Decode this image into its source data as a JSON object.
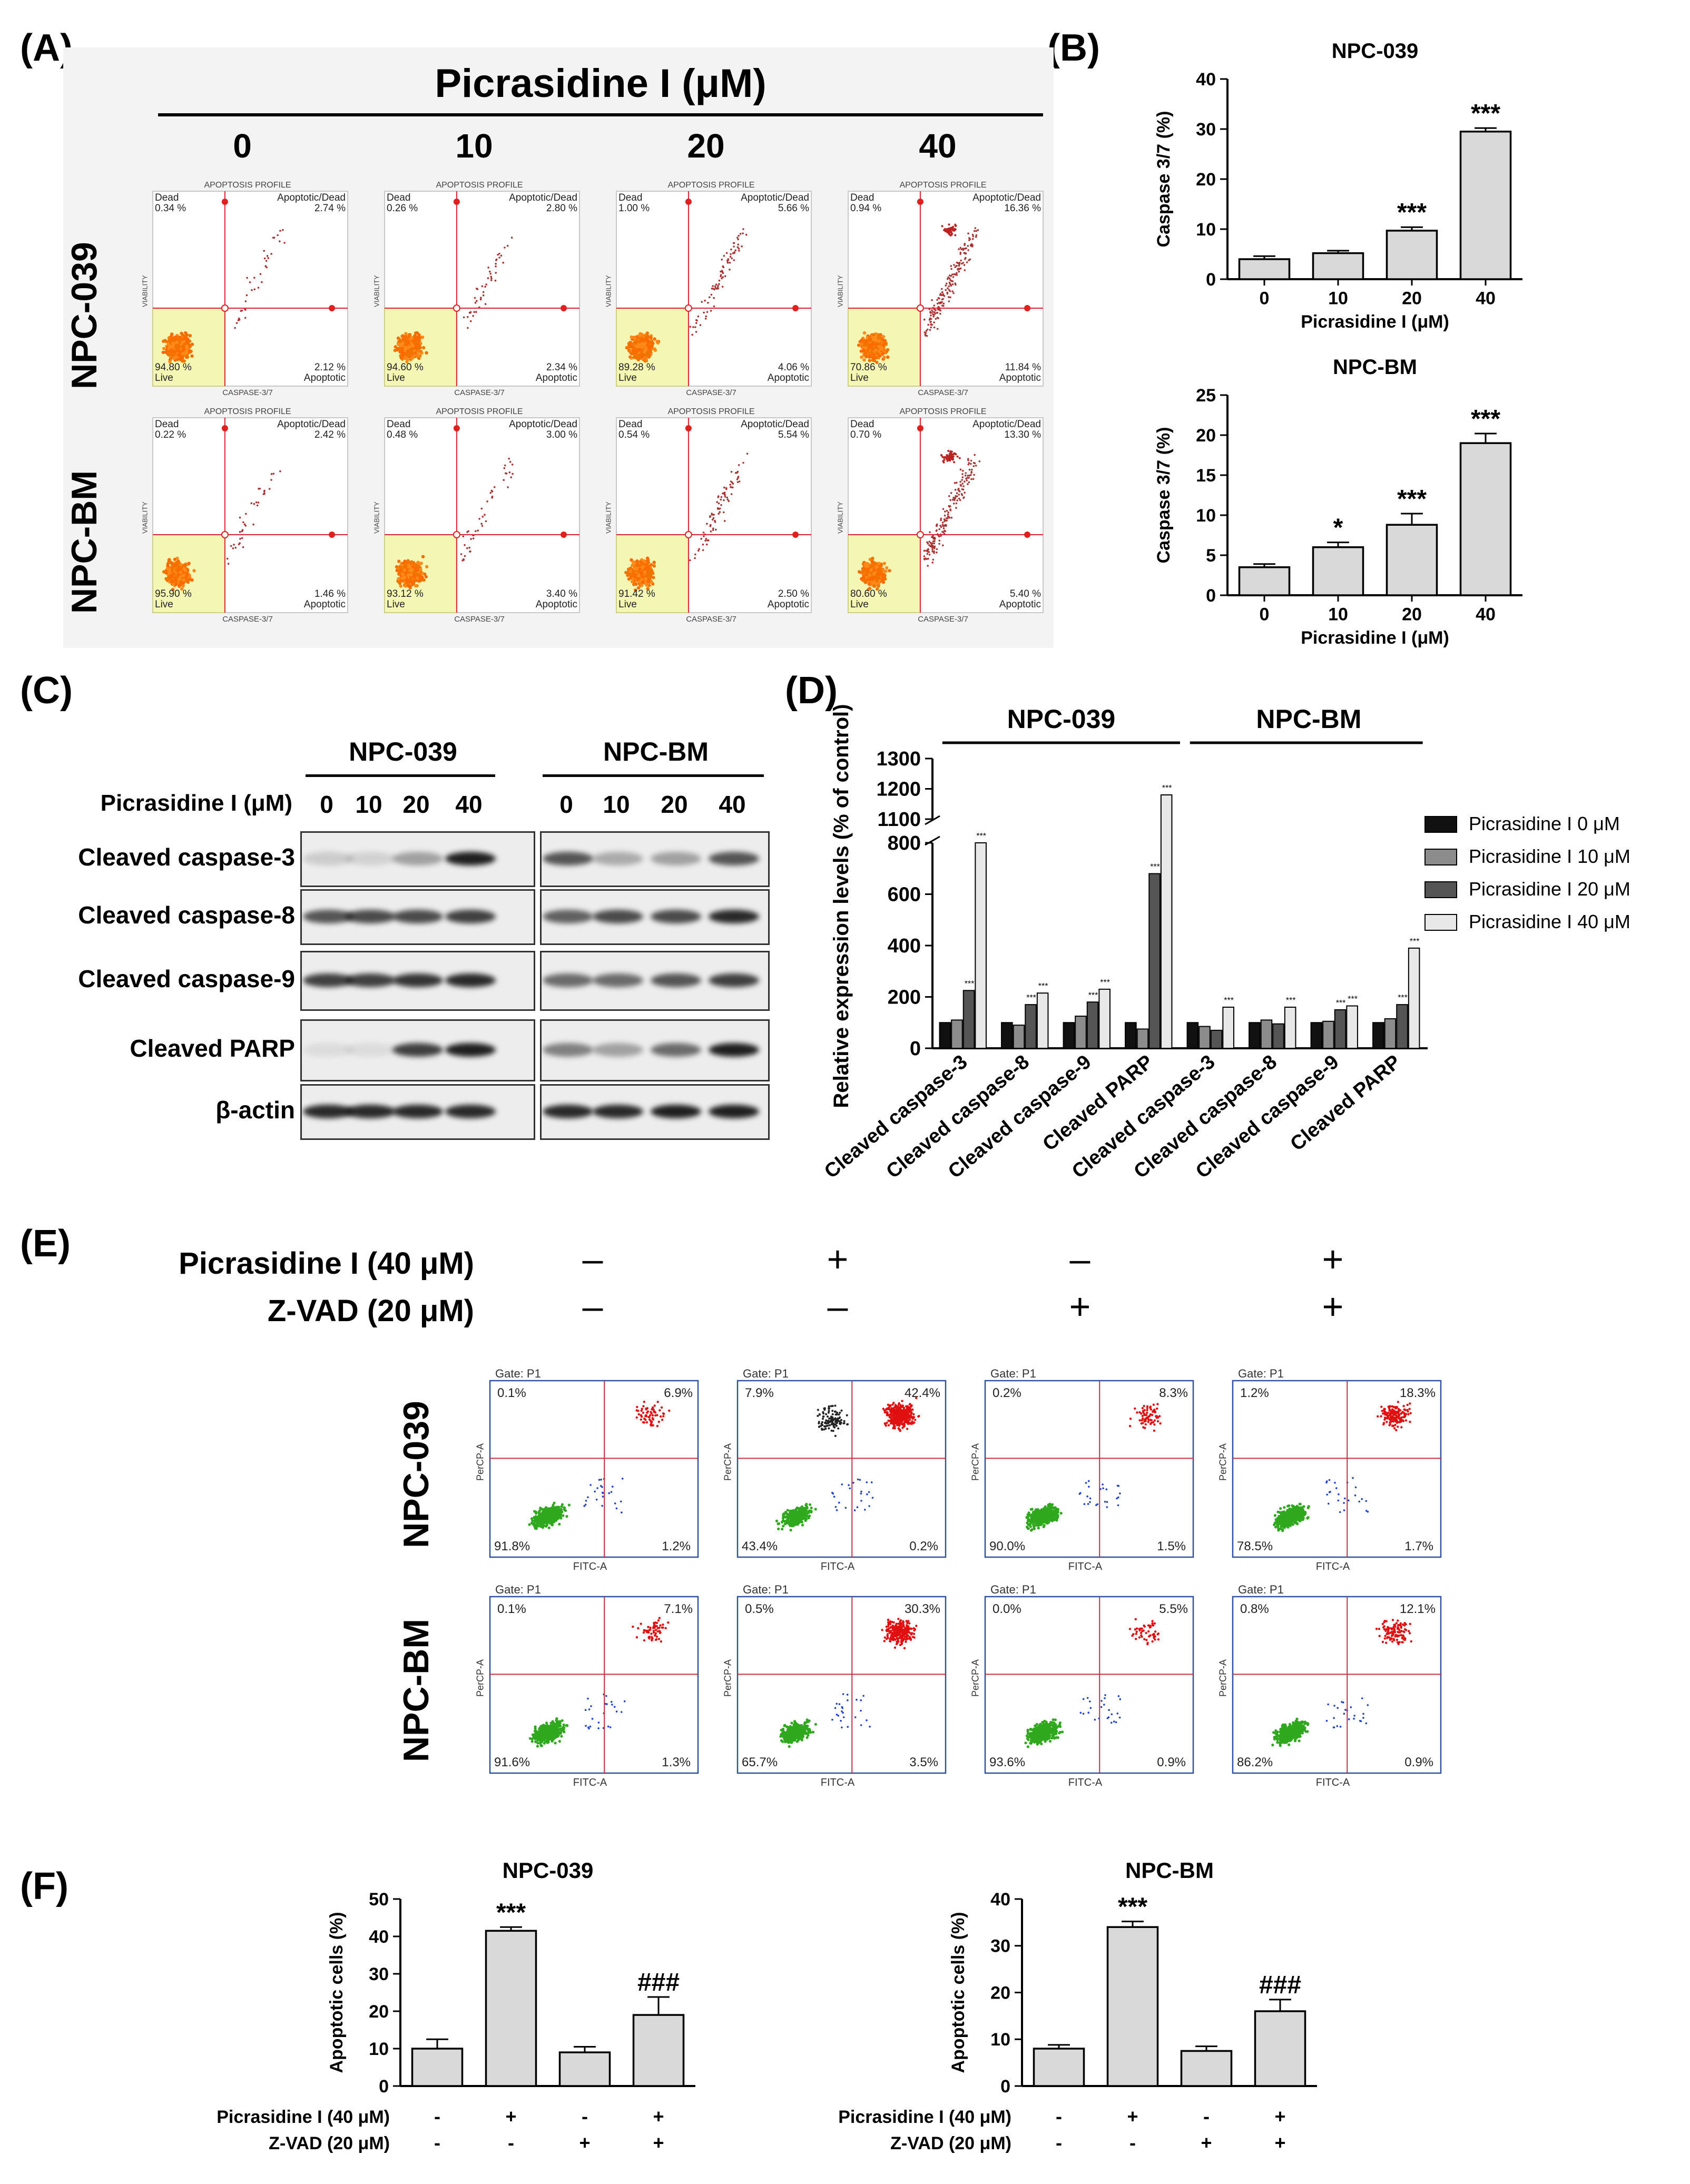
{
  "panels": {
    "A": "(A)",
    "B": "(B)",
    "C": "(C)",
    "D": "(D)",
    "E": "(E)",
    "F": "(F)"
  },
  "panelA": {
    "title": "Picrasidine I (μM)",
    "doses": [
      "0",
      "10",
      "20",
      "40"
    ],
    "rows": [
      "NPC-039",
      "NPC-BM"
    ],
    "plot_title": "APOPTOSIS PROFILE",
    "y_axis": "VIABILITY",
    "x_axis": "CASPASE-3/7",
    "corner_labels": {
      "dead": "Dead",
      "apodead": "Apoptotic/Dead",
      "live": "Live",
      "apo": "Apoptotic"
    },
    "cells": [
      [
        {
          "dead": "0.34 %",
          "apodead": "2.74 %",
          "live": "94.80 %",
          "apo": "2.12 %"
        },
        {
          "dead": "0.26 %",
          "apodead": "2.80 %",
          "live": "94.60 %",
          "apo": "2.34 %"
        },
        {
          "dead": "1.00 %",
          "apodead": "5.66 %",
          "live": "89.28 %",
          "apo": "4.06 %"
        },
        {
          "dead": "0.94 %",
          "apodead": "16.36 %",
          "live": "70.86 %",
          "apo": "11.84 %"
        }
      ],
      [
        {
          "dead": "0.22 %",
          "apodead": "2.42 %",
          "live": "95.90 %",
          "apo": "1.46 %"
        },
        {
          "dead": "0.48 %",
          "apodead": "3.00 %",
          "live": "93.12 %",
          "apo": "3.40 %"
        },
        {
          "dead": "0.54 %",
          "apodead": "5.54 %",
          "live": "91.42 %",
          "apo": "2.50 %"
        },
        {
          "dead": "0.70 %",
          "apodead": "13.30 %",
          "live": "80.60 %",
          "apo": "5.40 %"
        }
      ]
    ]
  },
  "panelC": {
    "groups": [
      "NPC-039",
      "NPC-BM"
    ],
    "dose_label": "Picrasidine  I (μM)",
    "doses": [
      "0",
      "10",
      "20",
      "40"
    ],
    "proteins": [
      "Cleaved caspase-3",
      "Cleaved caspase-8",
      "Cleaved caspase-9",
      "Cleaved PARP",
      "β-actin"
    ]
  },
  "panelE": {
    "treat1": "Picrasidine I (40 μM)",
    "treat2": "Z-VAD (20 μM)",
    "signs1": [
      "–",
      "+",
      "–",
      "+"
    ],
    "signs2": [
      "–",
      "–",
      "+",
      "+"
    ],
    "rows": [
      "NPC-039",
      "NPC-BM"
    ],
    "gate": "Gate: P1",
    "y_axis": "PerCP-A",
    "x_axis": "FITC-A",
    "cells": [
      [
        {
          "ul": "0.1%",
          "ur": "6.9%",
          "ll": "91.8%",
          "lr": "1.2%"
        },
        {
          "ul": "7.9%",
          "ur": "42.4%",
          "ll": "43.4%",
          "lr": "0.2%"
        },
        {
          "ul": "0.2%",
          "ur": "8.3%",
          "ll": "90.0%",
          "lr": "1.5%"
        },
        {
          "ul": "1.2%",
          "ur": "18.3%",
          "ll": "78.5%",
          "lr": "1.7%"
        }
      ],
      [
        {
          "ul": "0.1%",
          "ur": "7.1%",
          "ll": "91.6%",
          "lr": "1.3%"
        },
        {
          "ul": "0.5%",
          "ur": "30.3%",
          "ll": "65.7%",
          "lr": "3.5%"
        },
        {
          "ul": "0.0%",
          "ur": "5.5%",
          "ll": "93.6%",
          "lr": "0.9%"
        },
        {
          "ul": "0.8%",
          "ur": "12.1%",
          "ll": "86.2%",
          "lr": "0.9%"
        }
      ]
    ]
  },
  "chart_data": [
    {
      "id": "B1",
      "type": "bar",
      "title": "NPC-039",
      "xlabel": "Picrasidine I (μM)",
      "ylabel": "Caspase 3/7 (%)",
      "categories": [
        "0",
        "10",
        "20",
        "40"
      ],
      "values": [
        4,
        5.2,
        9.7,
        29.5
      ],
      "errors": [
        0.6,
        0.5,
        0.7,
        0.7
      ],
      "ylim": [
        0,
        40
      ],
      "yticks": [
        "0",
        "10",
        "20",
        "30",
        "40"
      ],
      "annotations": [
        "",
        "",
        "***",
        "***"
      ]
    },
    {
      "id": "B2",
      "type": "bar",
      "title": "NPC-BM",
      "xlabel": "Picrasidine I (μM)",
      "ylabel": "Caspase 3/7 (%)",
      "categories": [
        "0",
        "10",
        "20",
        "40"
      ],
      "values": [
        3.5,
        6,
        8.8,
        19
      ],
      "errors": [
        0.4,
        0.6,
        1.4,
        1.2
      ],
      "ylim": [
        0,
        25
      ],
      "yticks": [
        "0",
        "5",
        "10",
        "15",
        "20",
        "25"
      ],
      "annotations": [
        "",
        "*",
        "***",
        "***"
      ]
    },
    {
      "id": "D",
      "type": "bar",
      "title": "",
      "ylabel": "Relative expression levels (% of control)",
      "group_titles": [
        "NPC-039",
        "NPC-BM"
      ],
      "categories": [
        "Cleaved caspase-3",
        "Cleaved caspase-8",
        "Cleaved caspase-9",
        "Cleaved PARP",
        "Cleaved caspase-3",
        "Cleaved caspase-8",
        "Cleaved caspase-9",
        "Cleaved PARP"
      ],
      "series": [
        {
          "name": "Picrasidine I 0 μM",
          "values": [
            100,
            100,
            100,
            100,
            100,
            100,
            100,
            100
          ]
        },
        {
          "name": "Picrasidine I 10 μM",
          "values": [
            110,
            90,
            125,
            75,
            85,
            110,
            105,
            115
          ]
        },
        {
          "name": "Picrasidine I 20 μM",
          "values": [
            225,
            170,
            180,
            680,
            70,
            95,
            150,
            170
          ]
        },
        {
          "name": "Picrasidine I 40 μM",
          "values": [
            820,
            215,
            230,
            1180,
            160,
            160,
            165,
            390
          ]
        }
      ],
      "ylim": [
        0,
        1300
      ],
      "yticks_lower": [
        "0",
        "200",
        "400",
        "600",
        "800"
      ],
      "yticks_upper": [
        "1100",
        "1200",
        "1300"
      ],
      "stars": "***"
    },
    {
      "id": "F1",
      "type": "bar",
      "title": "NPC-039",
      "ylabel": "Apoptotic cells (%)",
      "values": [
        10,
        41.5,
        9,
        19
      ],
      "errors": [
        2.5,
        1,
        1.5,
        4.8
      ],
      "ylim": [
        0,
        50
      ],
      "yticks": [
        "0",
        "10",
        "20",
        "30",
        "40",
        "50"
      ],
      "annotations": [
        "",
        "***",
        "",
        "###"
      ],
      "row1_label": "Picrasidine I (40 μM)",
      "row1": [
        "-",
        "+",
        "-",
        "+"
      ],
      "row2_label": "Z-VAD (20 μM)",
      "row2": [
        "-",
        "-",
        "+",
        "+"
      ]
    },
    {
      "id": "F2",
      "type": "bar",
      "title": "NPC-BM",
      "ylabel": "Apoptotic cells (%)",
      "values": [
        8,
        34,
        7.5,
        16
      ],
      "errors": [
        0.8,
        1.2,
        1,
        2.5
      ],
      "ylim": [
        0,
        40
      ],
      "yticks": [
        "0",
        "10",
        "20",
        "30",
        "40"
      ],
      "annotations": [
        "",
        "***",
        "",
        "###"
      ],
      "row1_label": "Picrasidine I (40 μM)",
      "row1": [
        "-",
        "+",
        "-",
        "+"
      ],
      "row2_label": "Z-VAD (20 μM)",
      "row2": [
        "-",
        "-",
        "+",
        "+"
      ]
    }
  ]
}
